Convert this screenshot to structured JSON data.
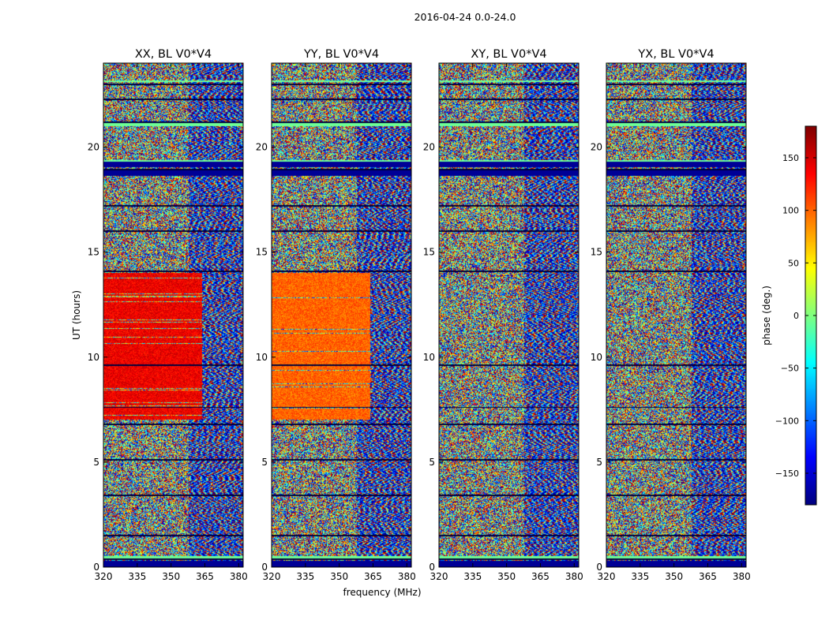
{
  "figure": {
    "title": "2016-04-24 0.0-24.0"
  },
  "chart_data": [
    {
      "type": "heatmap",
      "title": "XX, BL V0*V4",
      "xlabel": "",
      "ylabel": "UT (hours)",
      "xlim": [
        320,
        382
      ],
      "ylim": [
        0,
        24
      ],
      "xticks": [
        320,
        335,
        350,
        365,
        380
      ],
      "yticks": [
        0,
        5,
        10,
        15,
        20
      ],
      "value": "visibility phase (deg.)",
      "features": {
        "coherent_block_hours": [
          7.0,
          14.0
        ],
        "coherent_block_freq_max": 364,
        "coherent_phase_deg": 140
      }
    },
    {
      "type": "heatmap",
      "title": "YY, BL V0*V4",
      "xlabel": "frequency (MHz)",
      "ylabel": "",
      "xlim": [
        320,
        382
      ],
      "ylim": [
        0,
        24
      ],
      "xticks": [
        320,
        335,
        350,
        365,
        380
      ],
      "yticks": [
        0,
        5,
        10,
        15,
        20
      ],
      "value": "visibility phase (deg.)",
      "features": {
        "coherent_block_hours": [
          7.0,
          14.0
        ],
        "coherent_block_freq_max": 364,
        "coherent_phase_deg": 100
      }
    },
    {
      "type": "heatmap",
      "title": "XY, BL V0*V4",
      "xlabel": "",
      "ylabel": "",
      "xlim": [
        320,
        382
      ],
      "ylim": [
        0,
        24
      ],
      "xticks": [
        320,
        335,
        350,
        365,
        380
      ],
      "yticks": [
        0,
        5,
        10,
        15,
        20
      ],
      "value": "visibility phase (deg.)",
      "features": {}
    },
    {
      "type": "heatmap",
      "title": "YX, BL V0*V4",
      "xlabel": "",
      "ylabel": "",
      "xlim": [
        320,
        382
      ],
      "ylim": [
        0,
        24
      ],
      "xticks": [
        320,
        335,
        350,
        365,
        380
      ],
      "yticks": [
        0,
        5,
        10,
        15,
        20
      ],
      "value": "visibility phase (deg.)",
      "features": {}
    }
  ],
  "colorbar": {
    "label": "phase (deg.)",
    "range": [
      -180,
      180
    ],
    "ticks": [
      150,
      100,
      50,
      0,
      -50,
      -100,
      -150
    ],
    "tick_labels": [
      "150",
      "100",
      "50",
      "0",
      "−50",
      "−100",
      "−150"
    ],
    "colormap": "jet",
    "colors": [
      "#00007f",
      "#0000ff",
      "#007fff",
      "#00ffff",
      "#7fff7f",
      "#ffff00",
      "#ff7f00",
      "#ff0000",
      "#7f0000"
    ]
  },
  "bands": {
    "blank_hours": [
      0.35,
      1.5,
      3.4,
      5.1,
      6.8,
      7.6,
      9.6,
      14.1,
      16.0,
      17.2,
      18.95,
      21.2,
      22.3,
      23.0
    ],
    "blue_hours": [
      [
        0.0,
        0.3
      ],
      [
        18.65,
        18.95
      ],
      [
        19.05,
        19.3
      ]
    ],
    "green_hours": [
      [
        0.4,
        0.5
      ],
      [
        19.3,
        19.4
      ],
      [
        21.0,
        21.15
      ],
      [
        23.1,
        23.2
      ]
    ]
  }
}
